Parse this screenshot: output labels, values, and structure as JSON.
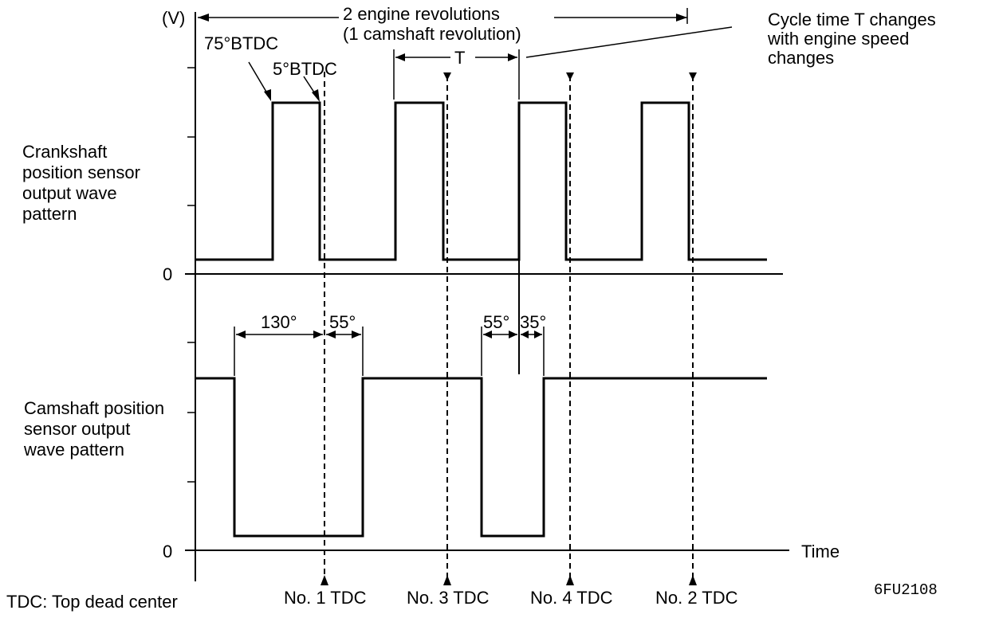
{
  "labels": {
    "y_unit": "(V)",
    "revolutions_line1": "2 engine revolutions",
    "revolutions_line2": "(1 camshaft revolution)",
    "cycle_T": "T",
    "cycle_note_line1": "Cycle time T changes",
    "cycle_note_line2": "with engine speed",
    "cycle_note_line3": "changes",
    "btdc_75": "75°BTDC",
    "btdc_5": "5°BTDC",
    "crank_label_line1": "Crankshaft",
    "crank_label_line2": "position sensor",
    "crank_label_line3": "output wave",
    "crank_label_line4": "pattern",
    "cam_label_line1": "Camshaft position",
    "cam_label_line2": "sensor output",
    "cam_label_line3": "wave pattern",
    "zero_crank": "0",
    "zero_cam": "0",
    "time_axis": "Time",
    "angle_130": "130°",
    "angle_55_a": "55°",
    "angle_55_b": "55°",
    "angle_35": "35°",
    "tdc_no1": "No. 1 TDC",
    "tdc_no3": "No. 3 TDC",
    "tdc_no4": "No. 4 TDC",
    "tdc_no2": "No. 2 TDC",
    "footnote": "TDC: Top dead center",
    "figure_code": "6FU2108"
  }
}
